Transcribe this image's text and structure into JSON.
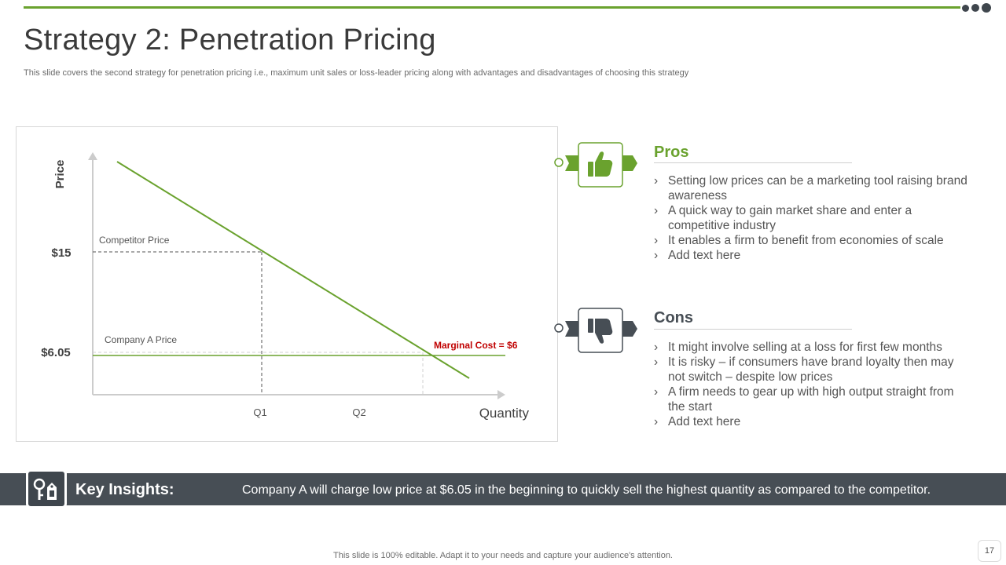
{
  "slide": {
    "title": "Strategy 2: Penetration Pricing",
    "subtitle": "This slide covers the second strategy for penetration pricing i.e., maximum unit sales or loss-leader pricing along with advantages and disadvantages of choosing this strategy",
    "page_number": "17",
    "footer": "This slide is 100% editable. Adapt it to your needs and capture your audience's attention."
  },
  "colors": {
    "accent_green": "#6aa22e",
    "dark_gray": "#474e55",
    "marginal_cost_red": "#c00000"
  },
  "diagram": {
    "y_axis_label": "Price",
    "x_axis_label": "Quantity",
    "price_labels": [
      "$15",
      "$6.05"
    ],
    "line_labels": {
      "competitor": "Competitor Price",
      "company_a": "Company A Price",
      "marginal_cost": "Marginal Cost  = $6"
    },
    "quantity_labels": [
      "Q1",
      "Q2"
    ]
  },
  "pros": {
    "title": "Pros",
    "icon": "thumbs-up-icon",
    "items": [
      "Setting low prices can be a marketing tool raising brand awareness",
      "A quick way to gain market share and enter a competitive industry",
      "It enables a firm to benefit from economies of scale",
      "Add text here"
    ]
  },
  "cons": {
    "title": "Cons",
    "icon": "thumbs-down-icon",
    "items": [
      "It might involve selling at a loss for first few months",
      "It is risky – if consumers have brand loyalty then may not switch – despite low prices",
      "A firm needs to gear up with high output straight from the start",
      "Add text here"
    ]
  },
  "insights": {
    "label": "Key Insights:",
    "icon": "price-tag-icon",
    "text": "Company A will charge low price at $6.05 in the beginning to quickly sell the highest quantity as compared to the competitor."
  }
}
